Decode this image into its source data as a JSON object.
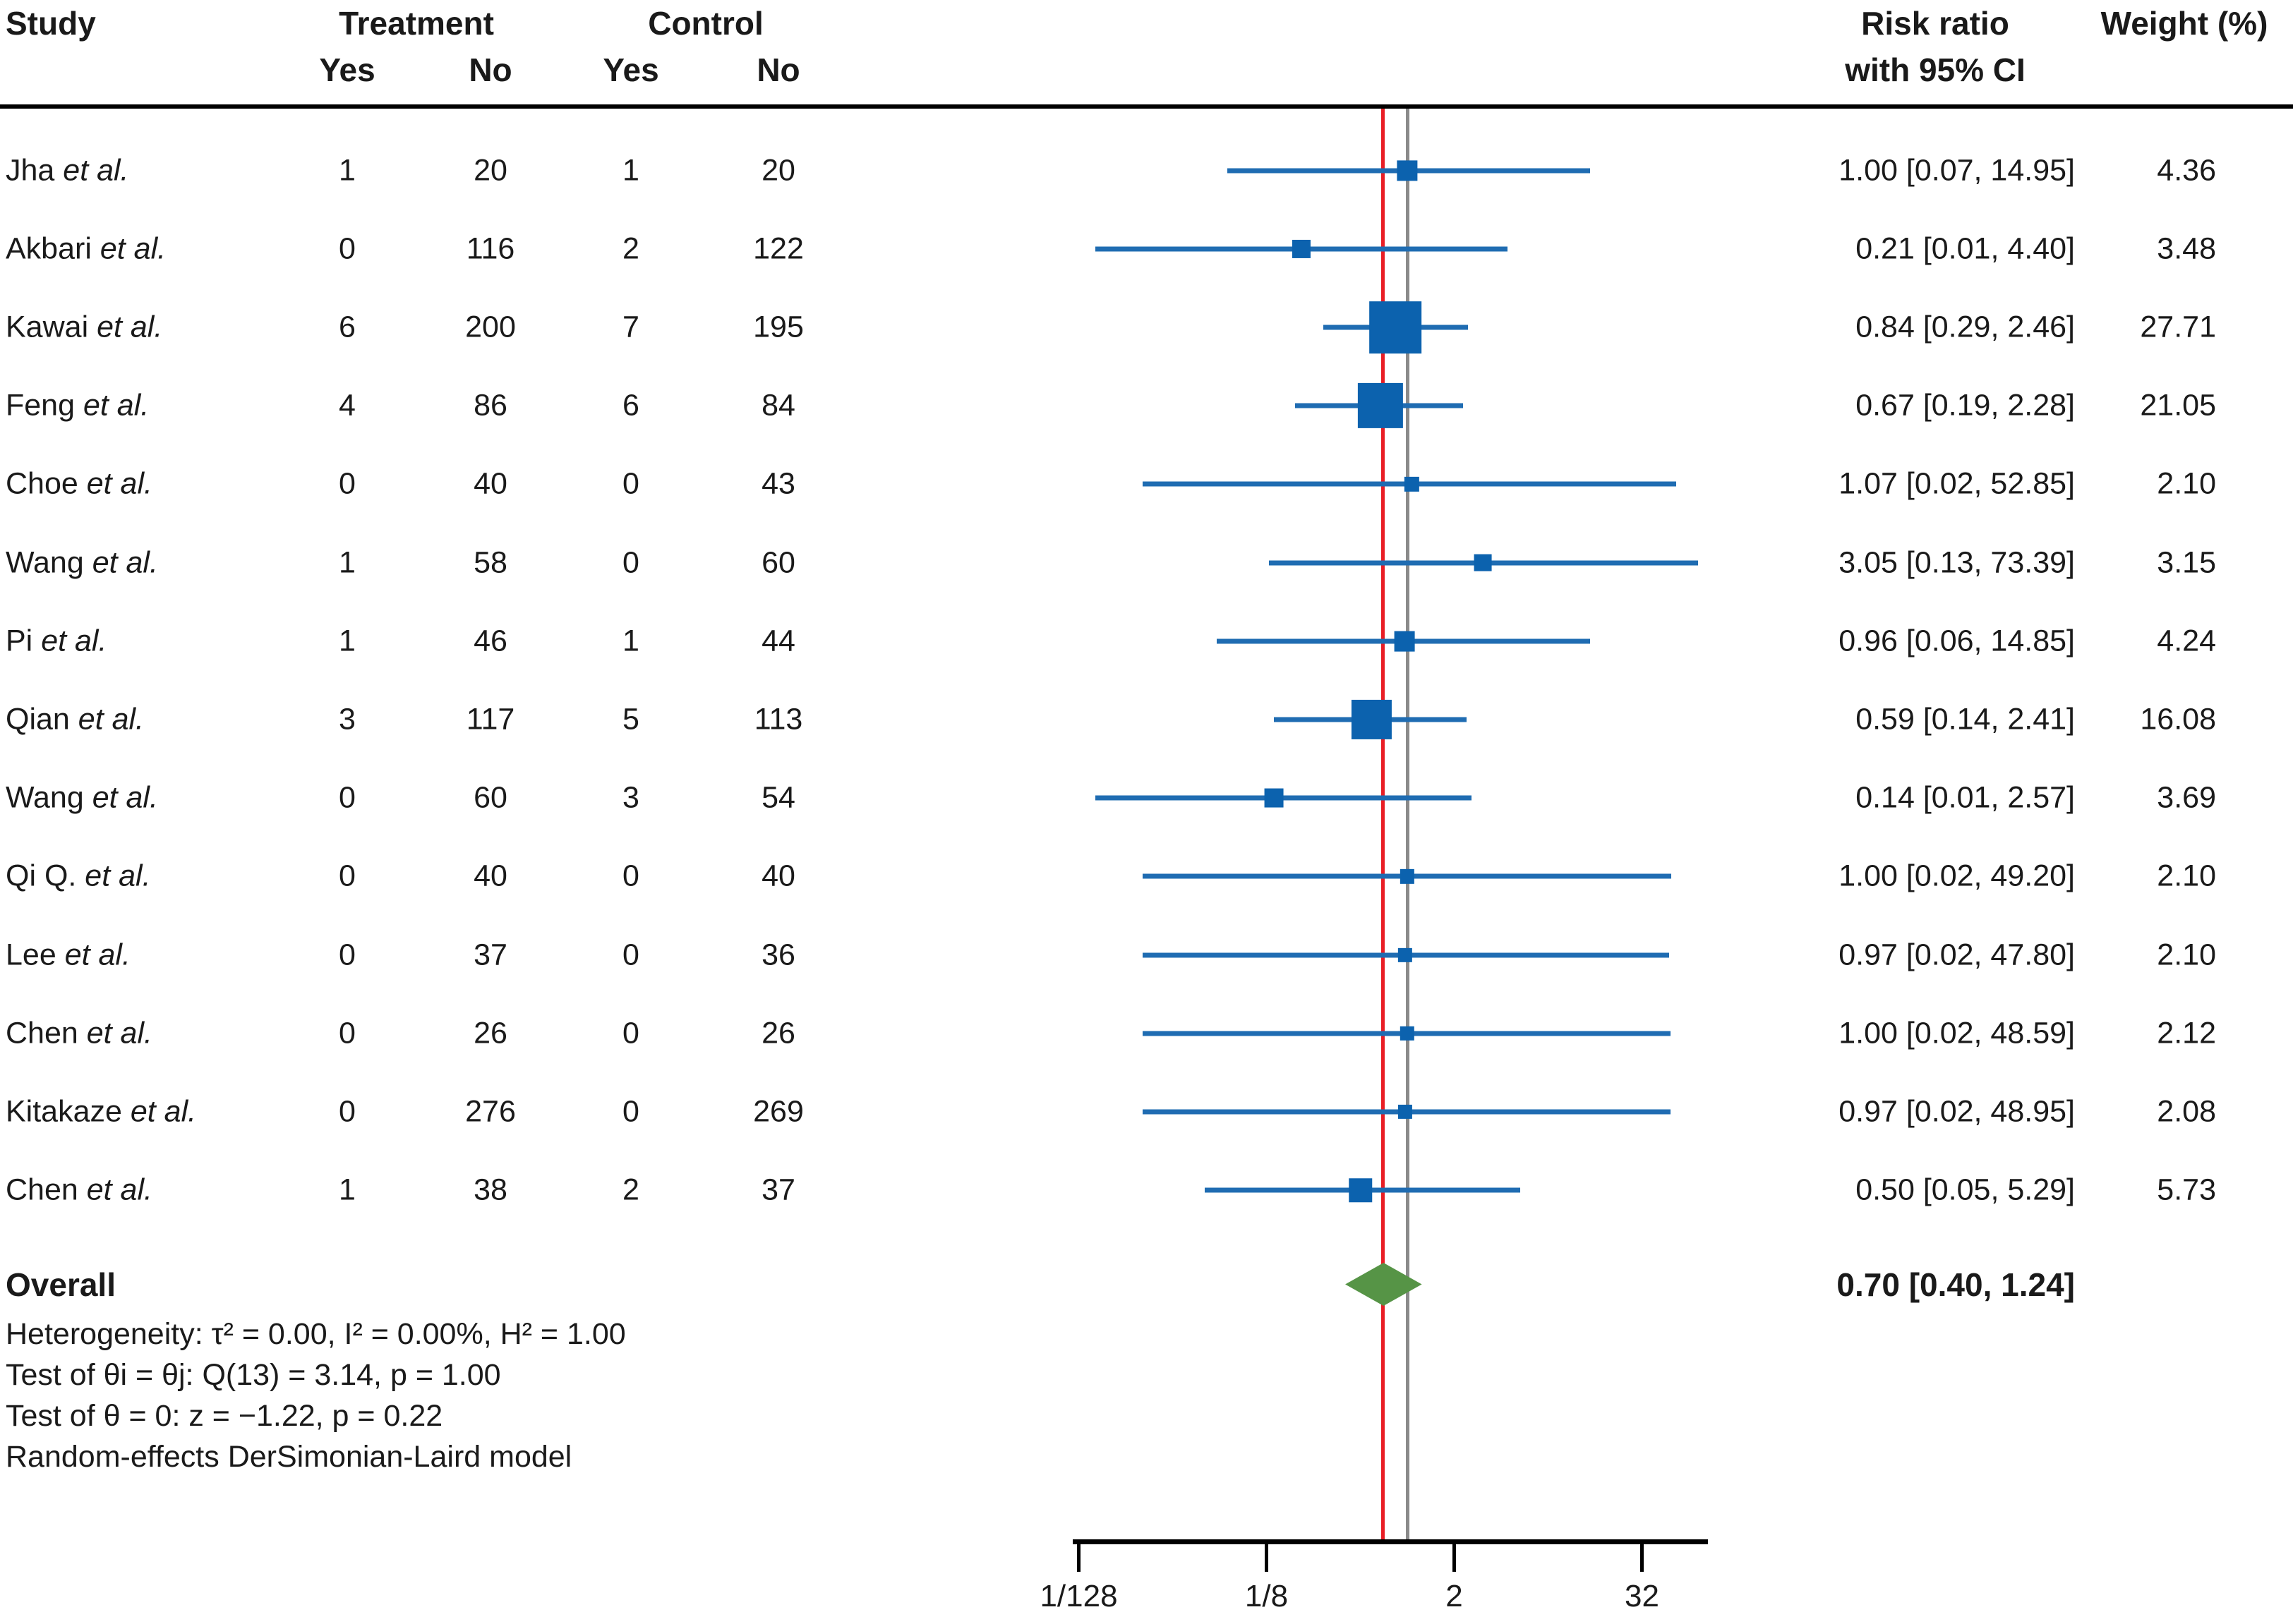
{
  "header": {
    "study": "Study",
    "treatment": "Treatment",
    "control": "Control",
    "yes1": "Yes",
    "no1": "No",
    "yes2": "Yes",
    "no2": "No",
    "risk_ratio_line1": "Risk ratio",
    "risk_ratio_line2": "with 95% CI",
    "weight": "Weight (%)"
  },
  "colors": {
    "marker_blue": "#0c62ae",
    "ci_line_blue": "#1f6cb2",
    "reference_line_gray": "#8a8a8a",
    "overall_line_red": "#e91e25",
    "diamond_green": "#569446",
    "text": "#1a1a1a",
    "axis_black": "#000000"
  },
  "chart_data": {
    "type": "forest",
    "x_scale": "log2",
    "reference_value": 1,
    "axis_ticks": [
      {
        "label": "1/128",
        "value": 0.0078125
      },
      {
        "label": "1/8",
        "value": 0.125
      },
      {
        "label": "2",
        "value": 2
      },
      {
        "label": "32",
        "value": 32
      }
    ],
    "studies": [
      {
        "study": "Jha",
        "suffix": "et al.",
        "treatment_yes": "1",
        "treatment_no": "20",
        "control_yes": "1",
        "control_no": "20",
        "rr": 1.0,
        "ci_low": 0.07,
        "ci_high": 14.95,
        "rr_label": "1.00 [0.07, 14.95]",
        "weight": 4.36,
        "weight_label": "4.36"
      },
      {
        "study": "Akbari",
        "suffix": "et al.",
        "treatment_yes": "0",
        "treatment_no": "116",
        "control_yes": "2",
        "control_no": "122",
        "rr": 0.21,
        "ci_low": 0.01,
        "ci_high": 4.4,
        "rr_label": "0.21 [0.01, 4.40]",
        "weight": 3.48,
        "weight_label": "3.48"
      },
      {
        "study": "Kawai",
        "suffix": "et al.",
        "treatment_yes": "6",
        "treatment_no": "200",
        "control_yes": "7",
        "control_no": "195",
        "rr": 0.84,
        "ci_low": 0.29,
        "ci_high": 2.46,
        "rr_label": "0.84 [0.29, 2.46]",
        "weight": 27.71,
        "weight_label": "27.71"
      },
      {
        "study": "Feng",
        "suffix": "et al.",
        "treatment_yes": "4",
        "treatment_no": "86",
        "control_yes": "6",
        "control_no": "84",
        "rr": 0.67,
        "ci_low": 0.19,
        "ci_high": 2.28,
        "rr_label": "0.67 [0.19, 2.28]",
        "weight": 21.05,
        "weight_label": "21.05"
      },
      {
        "study": "Choe",
        "suffix": "et al.",
        "treatment_yes": "0",
        "treatment_no": "40",
        "control_yes": "0",
        "control_no": "43",
        "rr": 1.07,
        "ci_low": 0.02,
        "ci_high": 52.85,
        "rr_label": "1.07 [0.02, 52.85]",
        "weight": 2.1,
        "weight_label": "2.10"
      },
      {
        "study": "Wang",
        "suffix": "et al.",
        "treatment_yes": "1",
        "treatment_no": "58",
        "control_yes": "0",
        "control_no": "60",
        "rr": 3.05,
        "ci_low": 0.13,
        "ci_high": 73.39,
        "rr_label": "3.05 [0.13, 73.39]",
        "weight": 3.15,
        "weight_label": "3.15"
      },
      {
        "study": "Pi",
        "suffix": "et al.",
        "treatment_yes": "1",
        "treatment_no": "46",
        "control_yes": "1",
        "control_no": "44",
        "rr": 0.96,
        "ci_low": 0.06,
        "ci_high": 14.85,
        "rr_label": "0.96 [0.06, 14.85]",
        "weight": 4.24,
        "weight_label": "4.24"
      },
      {
        "study": "Qian",
        "suffix": "et al.",
        "treatment_yes": "3",
        "treatment_no": "117",
        "control_yes": "5",
        "control_no": "113",
        "rr": 0.59,
        "ci_low": 0.14,
        "ci_high": 2.41,
        "rr_label": "0.59 [0.14, 2.41]",
        "weight": 16.08,
        "weight_label": "16.08"
      },
      {
        "study": "Wang",
        "suffix": "et al.",
        "treatment_yes": "0",
        "treatment_no": "60",
        "control_yes": "3",
        "control_no": "54",
        "rr": 0.14,
        "ci_low": 0.01,
        "ci_high": 2.57,
        "rr_label": "0.14 [0.01, 2.57]",
        "weight": 3.69,
        "weight_label": "3.69"
      },
      {
        "study": "Qi Q.",
        "suffix": "et al.",
        "treatment_yes": "0",
        "treatment_no": "40",
        "control_yes": "0",
        "control_no": "40",
        "rr": 1.0,
        "ci_low": 0.02,
        "ci_high": 49.2,
        "rr_label": "1.00 [0.02, 49.20]",
        "weight": 2.1,
        "weight_label": "2.10"
      },
      {
        "study": "Lee",
        "suffix": "et al.",
        "treatment_yes": "0",
        "treatment_no": "37",
        "control_yes": "0",
        "control_no": "36",
        "rr": 0.97,
        "ci_low": 0.02,
        "ci_high": 47.8,
        "rr_label": "0.97 [0.02, 47.80]",
        "weight": 2.1,
        "weight_label": "2.10"
      },
      {
        "study": "Chen",
        "suffix": "et al.",
        "treatment_yes": "0",
        "treatment_no": "26",
        "control_yes": "0",
        "control_no": "26",
        "rr": 1.0,
        "ci_low": 0.02,
        "ci_high": 48.59,
        "rr_label": "1.00 [0.02, 48.59]",
        "weight": 2.12,
        "weight_label": "2.12"
      },
      {
        "study": "Kitakaze",
        "suffix": "et al.",
        "treatment_yes": "0",
        "treatment_no": "276",
        "control_yes": "0",
        "control_no": "269",
        "rr": 0.97,
        "ci_low": 0.02,
        "ci_high": 48.95,
        "rr_label": "0.97 [0.02, 48.95]",
        "weight": 2.08,
        "weight_label": "2.08"
      },
      {
        "study": "Chen",
        "suffix": "et al.",
        "treatment_yes": "1",
        "treatment_no": "38",
        "control_yes": "2",
        "control_no": "37",
        "rr": 0.5,
        "ci_low": 0.05,
        "ci_high": 5.29,
        "rr_label": "0.50 [0.05, 5.29]",
        "weight": 5.73,
        "weight_label": "5.73"
      }
    ],
    "overall": {
      "label": "Overall",
      "rr": 0.7,
      "ci_low": 0.4,
      "ci_high": 1.24,
      "rr_label": "0.70 [0.40, 1.24]"
    },
    "footnotes": [
      "Heterogeneity: τ² = 0.00, I² = 0.00%, H² = 1.00",
      "Test of θi = θj: Q(13) = 3.14, p = 1.00",
      "Test of θ = 0: z = −1.22, p = 0.22",
      "Random-effects DerSimonian-Laird model"
    ]
  }
}
